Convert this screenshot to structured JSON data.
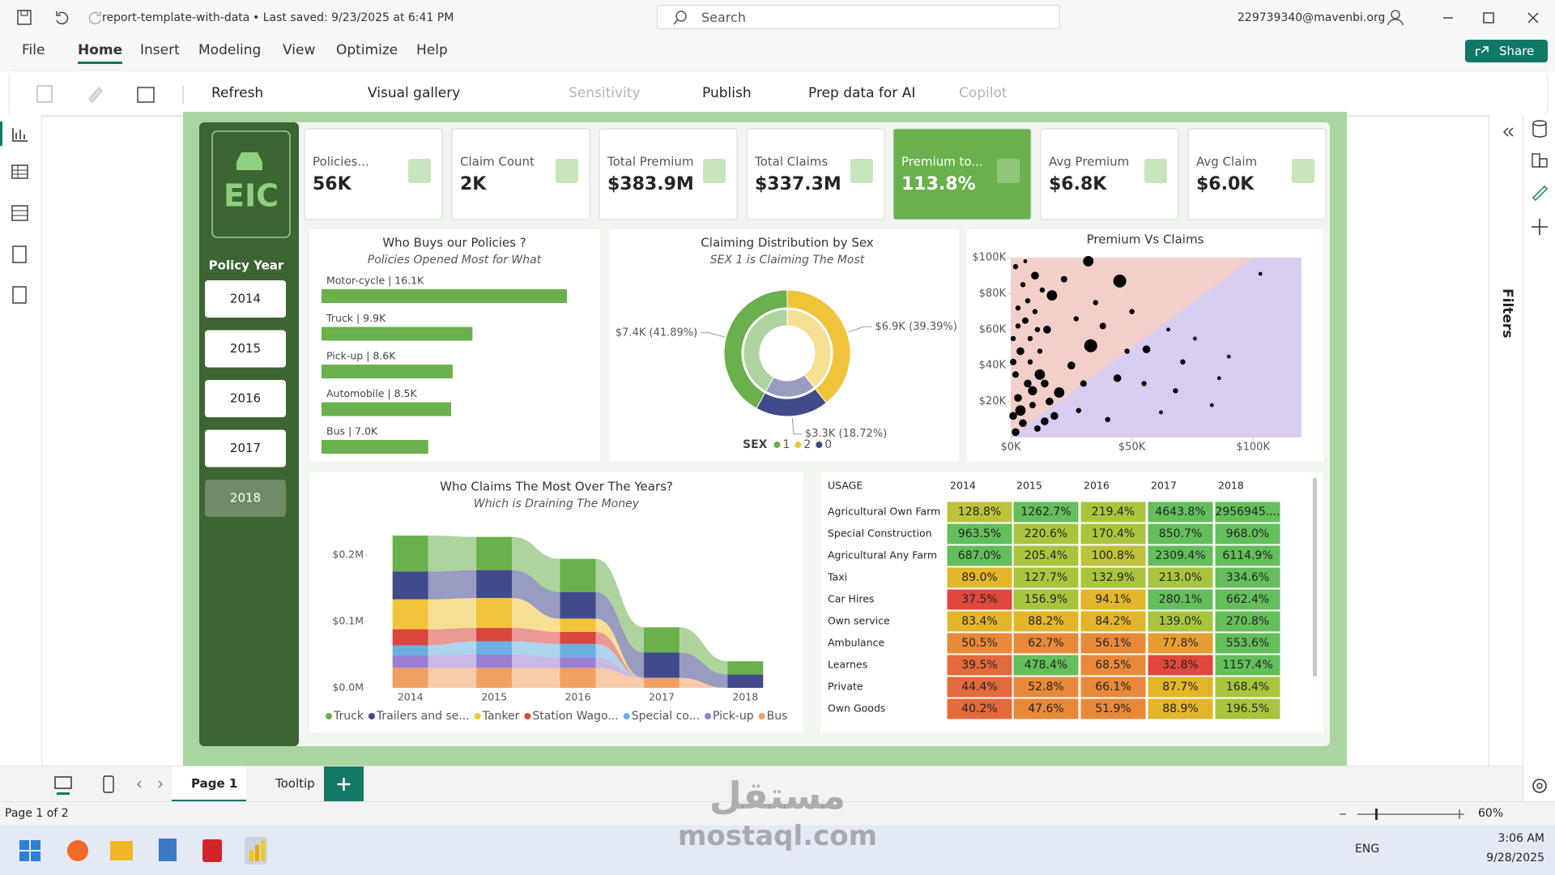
{
  "titlebar": {
    "file": "report-template-with-data",
    "saved": "• Last saved: 9/23/2025 at 6:41 PM",
    "search": "Search",
    "account": "229739340@mavenbi.org"
  },
  "menu": [
    "File",
    "Home",
    "Insert",
    "Modeling",
    "View",
    "Optimize",
    "Help"
  ],
  "active_menu": 1,
  "share": "Share",
  "ribbon": [
    "Refresh",
    "Visual gallery",
    "Sensitivity",
    "Publish",
    "Prep data for AI",
    "Copilot"
  ],
  "ribbon_disabled": [
    false,
    false,
    true,
    false,
    false,
    true
  ],
  "filters": "Filters",
  "report": {
    "logo": "EIC",
    "slicer_title": "Policy Year",
    "slicer_items": [
      "2014",
      "2015",
      "2016",
      "2017",
      "2018"
    ],
    "slicer_selected": 4,
    "kpis": [
      {
        "label": "Policies...",
        "value": "56K",
        "highlight": false
      },
      {
        "label": "Claim Count",
        "value": "2K",
        "highlight": false
      },
      {
        "label": "Total Premium",
        "value": "$383.9M",
        "highlight": false
      },
      {
        "label": "Total Claims",
        "value": "$337.3M",
        "highlight": false
      },
      {
        "label": "Premium to...",
        "value": "113.8%",
        "highlight": true
      },
      {
        "label": "Avg Premium",
        "value": "$6.8K",
        "highlight": false
      },
      {
        "label": "Avg Claim",
        "value": "$6.0K",
        "highlight": false
      }
    ]
  },
  "chart_data": [
    {
      "type": "bar",
      "title": "Who Buys our Policies ?",
      "subtitle": "Policies Opened Most for What",
      "categories": [
        "Motor-cycle | 16.1K",
        "Truck | 9.9K",
        "Pick-up | 8.6K",
        "Automobile | 8.5K",
        "Bus | 7.0K"
      ],
      "values": [
        16100,
        9900,
        8600,
        8500,
        7000
      ],
      "color": "#6ab04c",
      "xlim": [
        0,
        16100
      ]
    },
    {
      "type": "pie",
      "title": "Claiming Distribution by Sex",
      "subtitle": "SEX 1 is Claiming The Most",
      "legend_title": "SEX",
      "categories": [
        "1",
        "2",
        "0"
      ],
      "values": [
        41.89,
        39.39,
        18.72
      ],
      "value_labels": [
        "$7.4K (41.89%)",
        "$6.9K (39.39%)",
        "$3.3K (18.72%)"
      ],
      "colors": [
        "#6ab04c",
        "#f0c43a",
        "#414b8c"
      ]
    },
    {
      "type": "scatter",
      "title": "Premium Vs Claims",
      "color": "#000000",
      "x": [
        45000,
        33000,
        32000,
        56000,
        17000,
        10000,
        103000,
        86000,
        83000,
        71000,
        76000,
        44000,
        68000,
        62000,
        50000,
        38000,
        25000,
        20000,
        28000,
        40000,
        55000,
        65000,
        90000,
        48000,
        35000,
        22000,
        27000,
        30000,
        15000,
        12000,
        2000,
        5000,
        3000,
        6000,
        1000,
        4000,
        8000,
        2000,
        7000,
        3000,
        9000,
        1000,
        5000,
        11000,
        2000,
        14000,
        8000,
        10000,
        13000,
        6000,
        4000,
        16000,
        12000,
        9000,
        18000,
        3000,
        7000,
        1000,
        11000,
        14000
      ],
      "values": [
        87000,
        51000,
        98000,
        49000,
        79000,
        90000,
        91000,
        33000,
        18000,
        42000,
        55000,
        33000,
        26000,
        14000,
        70000,
        62000,
        40000,
        25000,
        15000,
        10000,
        30000,
        60000,
        45000,
        48000,
        75000,
        88000,
        66000,
        30000,
        60000,
        35000,
        95000,
        85000,
        72000,
        65000,
        55000,
        48000,
        42000,
        35000,
        30000,
        22000,
        18000,
        12000,
        8000,
        5000,
        3000,
        9000,
        55000,
        70000,
        82000,
        98000,
        15000,
        20000,
        48000,
        26000,
        12000,
        62000,
        76000,
        42000,
        60000,
        30000
      ],
      "sizes": [
        5,
        5,
        4,
        3,
        4,
        3,
        1.5,
        1.5,
        1.5,
        2,
        1.5,
        3,
        2,
        1.5,
        2,
        2.5,
        3,
        4,
        2,
        2,
        2,
        1.5,
        1.5,
        2,
        2,
        2.5,
        2,
        2.5,
        3,
        4,
        2,
        2,
        2,
        2.5,
        2,
        3,
        2,
        2.5,
        3,
        3,
        2.5,
        3,
        3,
        2.5,
        3,
        3,
        2,
        2,
        2,
        1.5,
        4,
        3,
        2,
        3.5,
        3,
        2,
        2,
        2.5,
        2,
        3
      ],
      "xlim": [
        0,
        120000
      ],
      "ylim": [
        0,
        100000
      ],
      "xticks": [
        {
          "value": 0,
          "label": "$0K"
        },
        {
          "value": 50000,
          "label": "$50K"
        },
        {
          "value": 100000,
          "label": "$100K"
        }
      ],
      "yticks": [
        {
          "value": 20000,
          "label": "$20K"
        },
        {
          "value": 40000,
          "label": "$40K"
        },
        {
          "value": 60000,
          "label": "$60K"
        },
        {
          "value": 80000,
          "label": "$80K"
        },
        {
          "value": 100000,
          "label": "$100K"
        }
      ]
    },
    {
      "type": "ribbon",
      "title": "Who Claims The Most Over The Years?",
      "subtitle": "Which is Draining The Money",
      "categories": [
        "2014",
        "2015",
        "2016",
        "2017",
        "2018"
      ],
      "series": [
        {
          "name": "Truck",
          "color": "#6ab04c",
          "values": [
            54000,
            50000,
            50000,
            38000,
            20000
          ]
        },
        {
          "name": "Trailers and se...",
          "color": "#414b8c",
          "values": [
            42000,
            42000,
            40000,
            38000,
            20000
          ]
        },
        {
          "name": "Tanker",
          "color": "#f0c43a",
          "values": [
            45000,
            45000,
            20000,
            0,
            0
          ]
        },
        {
          "name": "Station Wago...",
          "color": "#d9463e",
          "values": [
            24000,
            20000,
            18000,
            0,
            0
          ]
        },
        {
          "name": "Special co...",
          "color": "#6bb0e0",
          "values": [
            15000,
            20000,
            20000,
            0,
            0
          ]
        },
        {
          "name": "Pick-up",
          "color": "#9b7fd4",
          "values": [
            19000,
            20000,
            16000,
            0,
            0
          ]
        },
        {
          "name": "Bus",
          "color": "#f0a060",
          "values": [
            30000,
            30000,
            30000,
            15000,
            0
          ]
        }
      ],
      "ylim": [
        0,
        240000
      ],
      "yticks": [
        {
          "value": 0,
          "label": "$0.0M"
        },
        {
          "value": 100000,
          "label": "$0.1M"
        },
        {
          "value": 200000,
          "label": "$0.2M"
        }
      ]
    }
  ],
  "table": {
    "header": [
      "USAGE",
      "2014",
      "2015",
      "2016",
      "2017",
      "2018"
    ],
    "rows": [
      [
        "Agricultural Own Farm",
        "128.8%",
        "1262.7%",
        "219.4%",
        "4643.8%",
        "2956945...."
      ],
      [
        "Special Construction",
        "963.5%",
        "220.6%",
        "170.4%",
        "850.7%",
        "968.0%"
      ],
      [
        "Agricultural Any Farm",
        "687.0%",
        "205.4%",
        "100.8%",
        "2309.4%",
        "6114.9%"
      ],
      [
        "Taxi",
        "89.0%",
        "127.7%",
        "132.9%",
        "213.0%",
        "334.6%"
      ],
      [
        "Car Hires",
        "37.5%",
        "156.9%",
        "94.1%",
        "280.1%",
        "662.4%"
      ],
      [
        "Own service",
        "83.4%",
        "88.2%",
        "84.2%",
        "139.0%",
        "270.8%"
      ],
      [
        "Ambulance",
        "50.5%",
        "62.7%",
        "56.1%",
        "77.8%",
        "553.6%"
      ],
      [
        "Learnes",
        "39.5%",
        "478.4%",
        "68.5%",
        "32.8%",
        "1157.4%"
      ],
      [
        "Private",
        "44.4%",
        "52.8%",
        "66.1%",
        "87.7%",
        "168.4%"
      ],
      [
        "Own Goods",
        "40.2%",
        "47.6%",
        "51.9%",
        "88.9%",
        "196.5%"
      ]
    ],
    "cell_colors": [
      [
        "#bcc33a",
        "#63be5b",
        "#a9c53e",
        "#63be5b",
        "#63be5b"
      ],
      [
        "#63be5b",
        "#a9c53e",
        "#a9c53e",
        "#63be5b",
        "#63be5b"
      ],
      [
        "#63be5b",
        "#a9c53e",
        "#bcc33a",
        "#63be5b",
        "#63be5b"
      ],
      [
        "#e3b52a",
        "#a9c53e",
        "#a9c53e",
        "#a9c53e",
        "#63be5b"
      ],
      [
        "#e0483c",
        "#a9c53e",
        "#e3b52a",
        "#63be5b",
        "#63be5b"
      ],
      [
        "#e3b52a",
        "#e3b52a",
        "#e3b52a",
        "#a9c53e",
        "#63be5b"
      ],
      [
        "#e8893a",
        "#e8893a",
        "#e8893a",
        "#e69e32",
        "#63be5b"
      ],
      [
        "#e36a3c",
        "#63be5b",
        "#e8893a",
        "#e0483c",
        "#63be5b"
      ],
      [
        "#e36a3c",
        "#e8893a",
        "#e8893a",
        "#e3b52a",
        "#a9c53e"
      ],
      [
        "#e36a3c",
        "#e8893a",
        "#e8893a",
        "#e3b52a",
        "#a9c53e"
      ]
    ]
  },
  "pages": [
    "Page 1",
    "Tooltip"
  ],
  "status": {
    "page": "Page 1 of 2",
    "zoom": "60%"
  },
  "taskbar": {
    "lang": "ENG",
    "time": "3:06 AM",
    "date": "9/28/2025"
  },
  "watermark": [
    "مستقل",
    "mostaql.com"
  ]
}
